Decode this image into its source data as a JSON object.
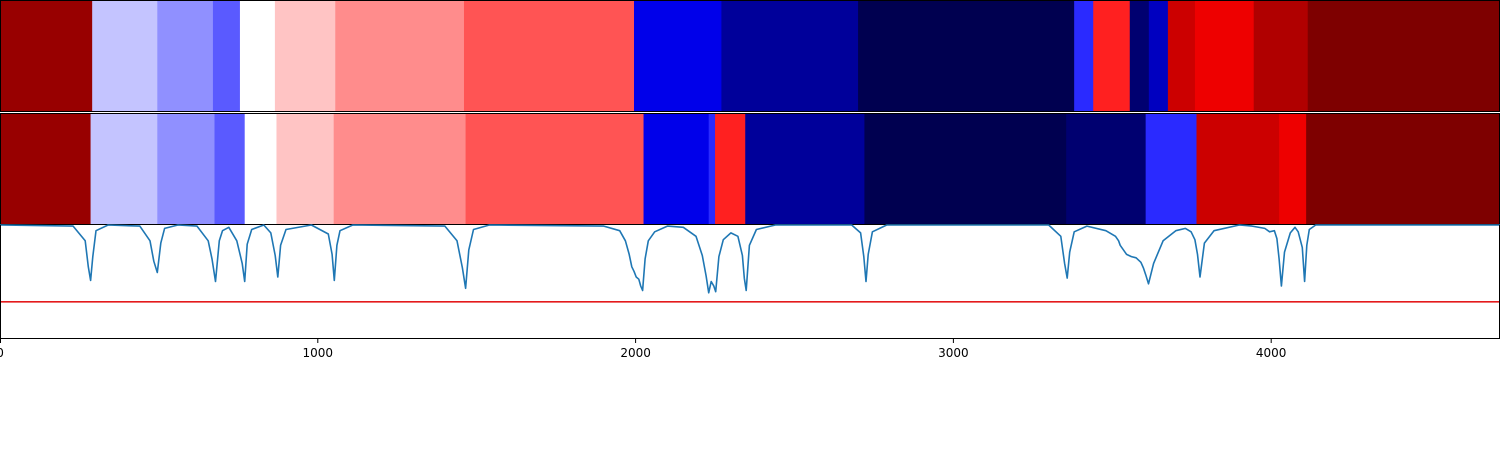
{
  "chart_data": {
    "type": "heatmap",
    "x_range": [
      0,
      4720
    ],
    "x_ticks": [
      0,
      1000,
      2000,
      3000,
      4000
    ],
    "colormap": "seismic",
    "grid": false,
    "segment_tracks": [
      {
        "name": "",
        "segments": [
          {
            "start": 0,
            "end": 290,
            "color": "#980000"
          },
          {
            "start": 290,
            "end": 495,
            "color": "#c4c4ff"
          },
          {
            "start": 495,
            "end": 670,
            "color": "#9090ff"
          },
          {
            "start": 670,
            "end": 755,
            "color": "#5a5aff"
          },
          {
            "start": 755,
            "end": 865,
            "color": "#ffffff"
          },
          {
            "start": 865,
            "end": 1055,
            "color": "#ffc4c4"
          },
          {
            "start": 1055,
            "end": 1460,
            "color": "#ff8c8c"
          },
          {
            "start": 1460,
            "end": 1995,
            "color": "#ff5454"
          },
          {
            "start": 1995,
            "end": 2270,
            "color": "#0000ea"
          },
          {
            "start": 2270,
            "end": 2700,
            "color": "#00009a"
          },
          {
            "start": 2700,
            "end": 3380,
            "color": "#000050"
          },
          {
            "start": 3380,
            "end": 3440,
            "color": "#2a2aff"
          },
          {
            "start": 3440,
            "end": 3555,
            "color": "#ff2020"
          },
          {
            "start": 3555,
            "end": 3615,
            "color": "#000070"
          },
          {
            "start": 3615,
            "end": 3675,
            "color": "#0000c0"
          },
          {
            "start": 3675,
            "end": 3760,
            "color": "#cc0000"
          },
          {
            "start": 3760,
            "end": 3945,
            "color": "#ee0000"
          },
          {
            "start": 3945,
            "end": 4115,
            "color": "#b00000"
          },
          {
            "start": 4115,
            "end": 4720,
            "color": "#7e0000"
          }
        ]
      },
      {
        "name": "",
        "segments": [
          {
            "start": 0,
            "end": 285,
            "color": "#980000"
          },
          {
            "start": 285,
            "end": 495,
            "color": "#c4c4ff"
          },
          {
            "start": 495,
            "end": 675,
            "color": "#9090ff"
          },
          {
            "start": 675,
            "end": 770,
            "color": "#5a5aff"
          },
          {
            "start": 770,
            "end": 870,
            "color": "#ffffff"
          },
          {
            "start": 870,
            "end": 1050,
            "color": "#ffc4c4"
          },
          {
            "start": 1050,
            "end": 1465,
            "color": "#ff8c8c"
          },
          {
            "start": 1465,
            "end": 2025,
            "color": "#ff5454"
          },
          {
            "start": 2025,
            "end": 2230,
            "color": "#0000ea"
          },
          {
            "start": 2230,
            "end": 2250,
            "color": "#2a2aff"
          },
          {
            "start": 2250,
            "end": 2345,
            "color": "#ff2020"
          },
          {
            "start": 2345,
            "end": 2720,
            "color": "#00009a"
          },
          {
            "start": 2720,
            "end": 3355,
            "color": "#000050"
          },
          {
            "start": 3355,
            "end": 3605,
            "color": "#000070"
          },
          {
            "start": 3605,
            "end": 3765,
            "color": "#2a2aff"
          },
          {
            "start": 3765,
            "end": 4025,
            "color": "#cc0000"
          },
          {
            "start": 4025,
            "end": 4110,
            "color": "#ee0000"
          },
          {
            "start": 4110,
            "end": 4720,
            "color": "#7e0000"
          }
        ]
      }
    ],
    "line_panel": {
      "y_range": [
        0,
        1
      ],
      "threshold": 0.32,
      "threshold_color": "#e41a1c",
      "line_color": "#1f77b4",
      "x": [
        0,
        230,
        268,
        278,
        285,
        292,
        302,
        340,
        440,
        472,
        484,
        495,
        506,
        518,
        560,
        620,
        655,
        667,
        678,
        690,
        700,
        720,
        745,
        762,
        770,
        778,
        792,
        830,
        852,
        866,
        874,
        883,
        900,
        980,
        1033,
        1045,
        1052,
        1060,
        1070,
        1110,
        1400,
        1438,
        1455,
        1465,
        1475,
        1490,
        1540,
        1900,
        1950,
        1968,
        1980,
        1988,
        1995,
        2002,
        2010,
        2016,
        2022,
        2030,
        2040,
        2060,
        2100,
        2150,
        2190,
        2210,
        2222,
        2230,
        2238,
        2246,
        2252,
        2262,
        2276,
        2300,
        2322,
        2336,
        2342,
        2348,
        2358,
        2380,
        2440,
        2680,
        2708,
        2718,
        2725,
        2732,
        2745,
        2790,
        3300,
        3338,
        3350,
        3358,
        3366,
        3380,
        3420,
        3480,
        3510,
        3520,
        3525,
        3545,
        3560,
        3575,
        3590,
        3598,
        3605,
        3614,
        3630,
        3660,
        3700,
        3730,
        3748,
        3760,
        3768,
        3776,
        3790,
        3820,
        3900,
        3940,
        3980,
        3995,
        4010,
        4018,
        4025,
        4032,
        4042,
        4060,
        4075,
        4085,
        4098,
        4105,
        4112,
        4120,
        4140,
        4180,
        4720
      ],
      "y": [
        1.0,
        0.99,
        0.86,
        0.63,
        0.51,
        0.72,
        0.95,
        1.0,
        0.99,
        0.86,
        0.68,
        0.58,
        0.84,
        0.97,
        1.0,
        0.99,
        0.86,
        0.7,
        0.5,
        0.86,
        0.95,
        0.98,
        0.86,
        0.66,
        0.5,
        0.83,
        0.96,
        1.0,
        0.93,
        0.73,
        0.54,
        0.82,
        0.96,
        1.0,
        0.92,
        0.74,
        0.51,
        0.82,
        0.95,
        1.0,
        0.99,
        0.86,
        0.62,
        0.44,
        0.78,
        0.96,
        1.0,
        0.99,
        0.95,
        0.86,
        0.74,
        0.63,
        0.59,
        0.54,
        0.52,
        0.46,
        0.42,
        0.7,
        0.86,
        0.94,
        0.99,
        0.98,
        0.9,
        0.73,
        0.55,
        0.4,
        0.5,
        0.46,
        0.41,
        0.72,
        0.87,
        0.93,
        0.9,
        0.73,
        0.53,
        0.42,
        0.82,
        0.96,
        1.0,
        1.0,
        0.93,
        0.72,
        0.5,
        0.74,
        0.94,
        1.0,
        1.0,
        0.9,
        0.66,
        0.53,
        0.76,
        0.94,
        0.99,
        0.95,
        0.9,
        0.86,
        0.82,
        0.74,
        0.72,
        0.71,
        0.67,
        0.62,
        0.56,
        0.48,
        0.66,
        0.86,
        0.95,
        0.97,
        0.94,
        0.87,
        0.74,
        0.54,
        0.84,
        0.95,
        1.0,
        0.99,
        0.97,
        0.94,
        0.95,
        0.88,
        0.7,
        0.46,
        0.76,
        0.93,
        0.98,
        0.94,
        0.8,
        0.5,
        0.82,
        0.96,
        1.0,
        1.0,
        1.0
      ]
    }
  }
}
